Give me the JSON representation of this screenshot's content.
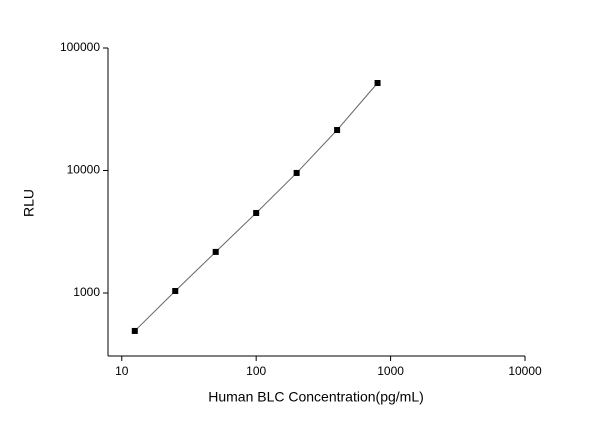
{
  "chart_data": {
    "type": "scatter",
    "x_label": "Human BLC Concentration(pg/mL)",
    "y_label": "RLU",
    "x_scale": "log",
    "y_scale": "log",
    "xlim": [
      7.9,
      10000
    ],
    "ylim": [
      306,
      100000
    ],
    "xticks": [
      10,
      100,
      1000,
      10000
    ],
    "yticks": [
      1000,
      10000,
      100000
    ],
    "series": [
      {
        "x": [
          12.5,
          25,
          50,
          100,
          200,
          400,
          800
        ],
        "values": [
          490,
          1038,
          2165,
          4500,
          9550,
          21400,
          51800
        ],
        "color": "#000000",
        "line_color": "#666666"
      }
    ]
  }
}
